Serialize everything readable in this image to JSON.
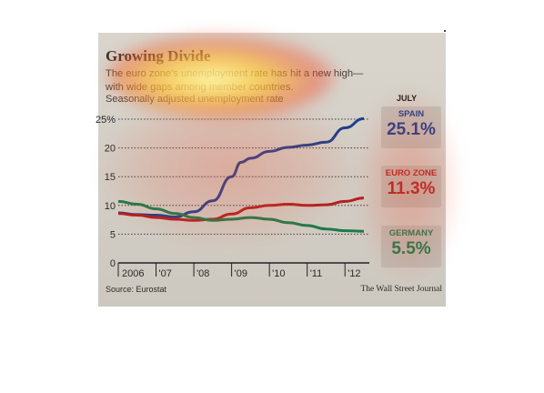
{
  "chart_data": {
    "type": "line",
    "title": "Growing Divide",
    "subtitle": "The euro zone's unemployment rate has hit a new high—with wide gaps among member countries.",
    "note": "Seasonally adjusted unemployment rate",
    "x_tick_labels": [
      "2006",
      "'07",
      "'08",
      "'09",
      "'10",
      "'11",
      "'12"
    ],
    "y_tick_labels": [
      "25%",
      "20",
      "15",
      "10",
      "5",
      "0"
    ],
    "y_ticks": [
      25,
      20,
      15,
      10,
      5,
      0
    ],
    "ylim": [
      0,
      25
    ],
    "xlim": [
      "2006-01",
      "2012-07"
    ],
    "grid": true,
    "value_header": "JULY",
    "series": [
      {
        "name": "SPAIN",
        "label": "25.1%",
        "color": "#1f3f8c",
        "x": [
          "2006-01",
          "2006-07",
          "2007-01",
          "2007-07",
          "2008-01",
          "2008-07",
          "2009-01",
          "2009-04",
          "2009-07",
          "2010-01",
          "2010-07",
          "2011-01",
          "2011-07",
          "2012-01",
          "2012-07"
        ],
        "values": [
          8.7,
          8.4,
          8.3,
          8.0,
          8.9,
          10.8,
          15.0,
          17.5,
          18.2,
          19.4,
          20.1,
          20.5,
          21.0,
          23.5,
          25.1
        ]
      },
      {
        "name": "EURO ZONE",
        "label": "11.3%",
        "color": "#b32020",
        "x": [
          "2006-01",
          "2006-07",
          "2007-01",
          "2007-07",
          "2008-01",
          "2008-07",
          "2009-01",
          "2009-07",
          "2010-01",
          "2010-07",
          "2011-01",
          "2011-07",
          "2012-01",
          "2012-07"
        ],
        "values": [
          8.6,
          8.3,
          7.9,
          7.6,
          7.4,
          7.6,
          8.5,
          9.6,
          10.0,
          10.2,
          10.0,
          10.1,
          10.7,
          11.3
        ]
      },
      {
        "name": "GERMANY",
        "label": "5.5%",
        "color": "#1f7a4a",
        "x": [
          "2006-01",
          "2006-07",
          "2007-01",
          "2007-07",
          "2008-01",
          "2008-07",
          "2009-01",
          "2009-07",
          "2010-01",
          "2010-07",
          "2011-01",
          "2011-07",
          "2012-01",
          "2012-07"
        ],
        "values": [
          10.7,
          10.2,
          9.4,
          8.6,
          7.9,
          7.4,
          7.6,
          7.9,
          7.6,
          7.0,
          6.5,
          5.9,
          5.6,
          5.5
        ]
      }
    ]
  },
  "source": "Source: Eurostat",
  "credit": "The Wall Street Journal"
}
